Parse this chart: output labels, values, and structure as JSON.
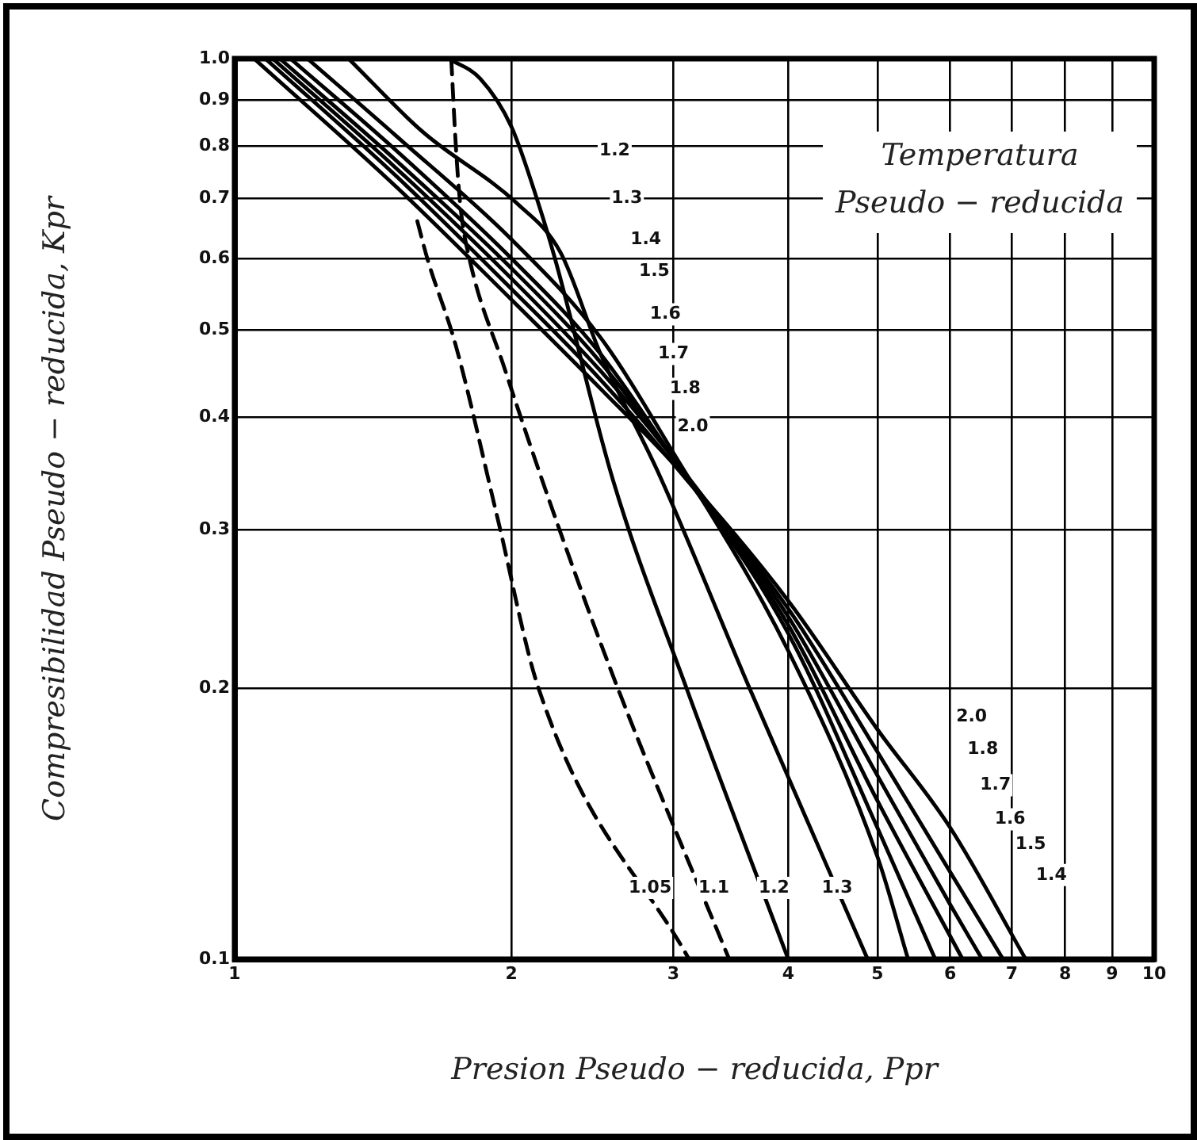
{
  "chart_data": {
    "type": "line",
    "xlabel": "Presion Pseudo − reducida, Ppr",
    "ylabel": "Compresibilidad Pseudo − reducida, Kpr",
    "legend_title": "Temperatura Pseudo − reducida",
    "log": "xy",
    "grid": true,
    "legend": false,
    "marker": "none",
    "xlim": [
      1,
      10
    ],
    "ylim": [
      0.1,
      1
    ],
    "xticks": [
      1,
      2,
      3,
      4,
      5,
      6,
      7,
      8,
      9,
      10
    ],
    "yticks": [
      0.1,
      0.2,
      0.3,
      0.4,
      0.5,
      0.6,
      0.7,
      0.8,
      0.9,
      {
        "value": 1,
        "label": "1.0"
      }
    ],
    "series": [
      {
        "color": "#000000",
        "line_style": "dashed",
        "x": [
          1.58,
          1.62,
          1.74,
          1.93,
          2.14,
          3.12
        ],
        "values": [
          0.66,
          0.6,
          0.48,
          0.31,
          0.2,
          0.1
        ]
      },
      {
        "color": "#000000",
        "line_style": "dashed",
        "x": [
          1.72,
          1.74,
          1.76,
          1.8,
          1.96,
          2.23,
          2.61,
          3.45
        ],
        "values": [
          1.0,
          0.8,
          0.686,
          0.6,
          0.457,
          0.31,
          0.2,
          0.1
        ]
      },
      {
        "color": "#000000",
        "line_style": "solid",
        "x": [
          1.71,
          1.85,
          2.0,
          2.14,
          2.23,
          2.58,
          3.1,
          4.0
        ],
        "values": [
          1.0,
          0.95,
          0.84,
          0.69,
          0.6,
          0.34,
          0.2,
          0.1
        ]
      },
      {
        "color": "#000000",
        "line_style": "solid",
        "x": [
          1.33,
          1.6,
          2.03,
          2.26,
          2.5,
          2.9,
          3.63,
          4.88
        ],
        "values": [
          1.0,
          0.83,
          0.69,
          0.61,
          0.47,
          0.344,
          0.2,
          0.1
        ]
      },
      {
        "color": "#000000",
        "line_style": "solid",
        "x": [
          1.2,
          1.5,
          2,
          2.5,
          3,
          4,
          5,
          5.4
        ],
        "values": [
          1.0,
          0.82,
          0.63,
          0.49,
          0.365,
          0.22,
          0.13,
          0.1
        ]
      },
      {
        "color": "#000000",
        "line_style": "solid",
        "x": [
          1.15,
          1.5,
          2,
          2.5,
          3,
          4,
          5,
          5.78
        ],
        "values": [
          1.0,
          0.79,
          0.6,
          0.47,
          0.36,
          0.23,
          0.14,
          0.1
        ]
      },
      {
        "color": "#000000",
        "line_style": "solid",
        "x": [
          1.12,
          1.5,
          2,
          2.5,
          3,
          4,
          5,
          6.19
        ],
        "values": [
          1.0,
          0.77,
          0.585,
          0.46,
          0.36,
          0.235,
          0.15,
          0.1
        ]
      },
      {
        "color": "#000000",
        "line_style": "solid",
        "x": [
          1.1,
          1.5,
          2,
          2.5,
          3,
          4,
          5,
          6,
          6.5
        ],
        "values": [
          1.0,
          0.755,
          0.57,
          0.45,
          0.36,
          0.24,
          0.16,
          0.115,
          0.1
        ]
      },
      {
        "color": "#000000",
        "line_style": "solid",
        "x": [
          1.08,
          1.5,
          2,
          2.5,
          3,
          4,
          5,
          6,
          6.85
        ],
        "values": [
          1.0,
          0.74,
          0.555,
          0.44,
          0.355,
          0.245,
          0.17,
          0.125,
          0.1
        ]
      },
      {
        "color": "#000000",
        "line_style": "solid",
        "x": [
          1.05,
          1.5,
          2,
          2.5,
          3,
          4,
          5,
          6,
          7.25
        ],
        "values": [
          1.0,
          0.72,
          0.54,
          0.43,
          0.355,
          0.25,
          0.18,
          0.14,
          0.1
        ]
      }
    ],
    "annotations": [
      {
        "text": "1.2",
        "x": 2.59,
        "y": 0.79
      },
      {
        "text": "1.3",
        "x": 2.67,
        "y": 0.7
      },
      {
        "text": "1.4",
        "x": 2.8,
        "y": 0.63
      },
      {
        "text": "1.5",
        "x": 2.86,
        "y": 0.58
      },
      {
        "text": "1.6",
        "x": 2.94,
        "y": 0.52
      },
      {
        "text": "1.7",
        "x": 3.0,
        "y": 0.47
      },
      {
        "text": "1.8",
        "x": 3.09,
        "y": 0.43
      },
      {
        "text": "2.0",
        "x": 3.15,
        "y": 0.39
      },
      {
        "text": "2.0",
        "x": 6.33,
        "y": 0.186
      },
      {
        "text": "1.8",
        "x": 6.51,
        "y": 0.171
      },
      {
        "text": "1.7",
        "x": 6.72,
        "y": 0.156
      },
      {
        "text": "1.6",
        "x": 6.97,
        "y": 0.143
      },
      {
        "text": "1.5",
        "x": 7.34,
        "y": 0.134
      },
      {
        "text": "1.4",
        "x": 7.73,
        "y": 0.124
      },
      {
        "text": "1.05",
        "x": 2.83,
        "y": 0.12
      },
      {
        "text": "1.1",
        "x": 3.32,
        "y": 0.12
      },
      {
        "text": "1.2",
        "x": 3.86,
        "y": 0.12
      },
      {
        "text": "1.3",
        "x": 4.52,
        "y": 0.12
      }
    ]
  }
}
